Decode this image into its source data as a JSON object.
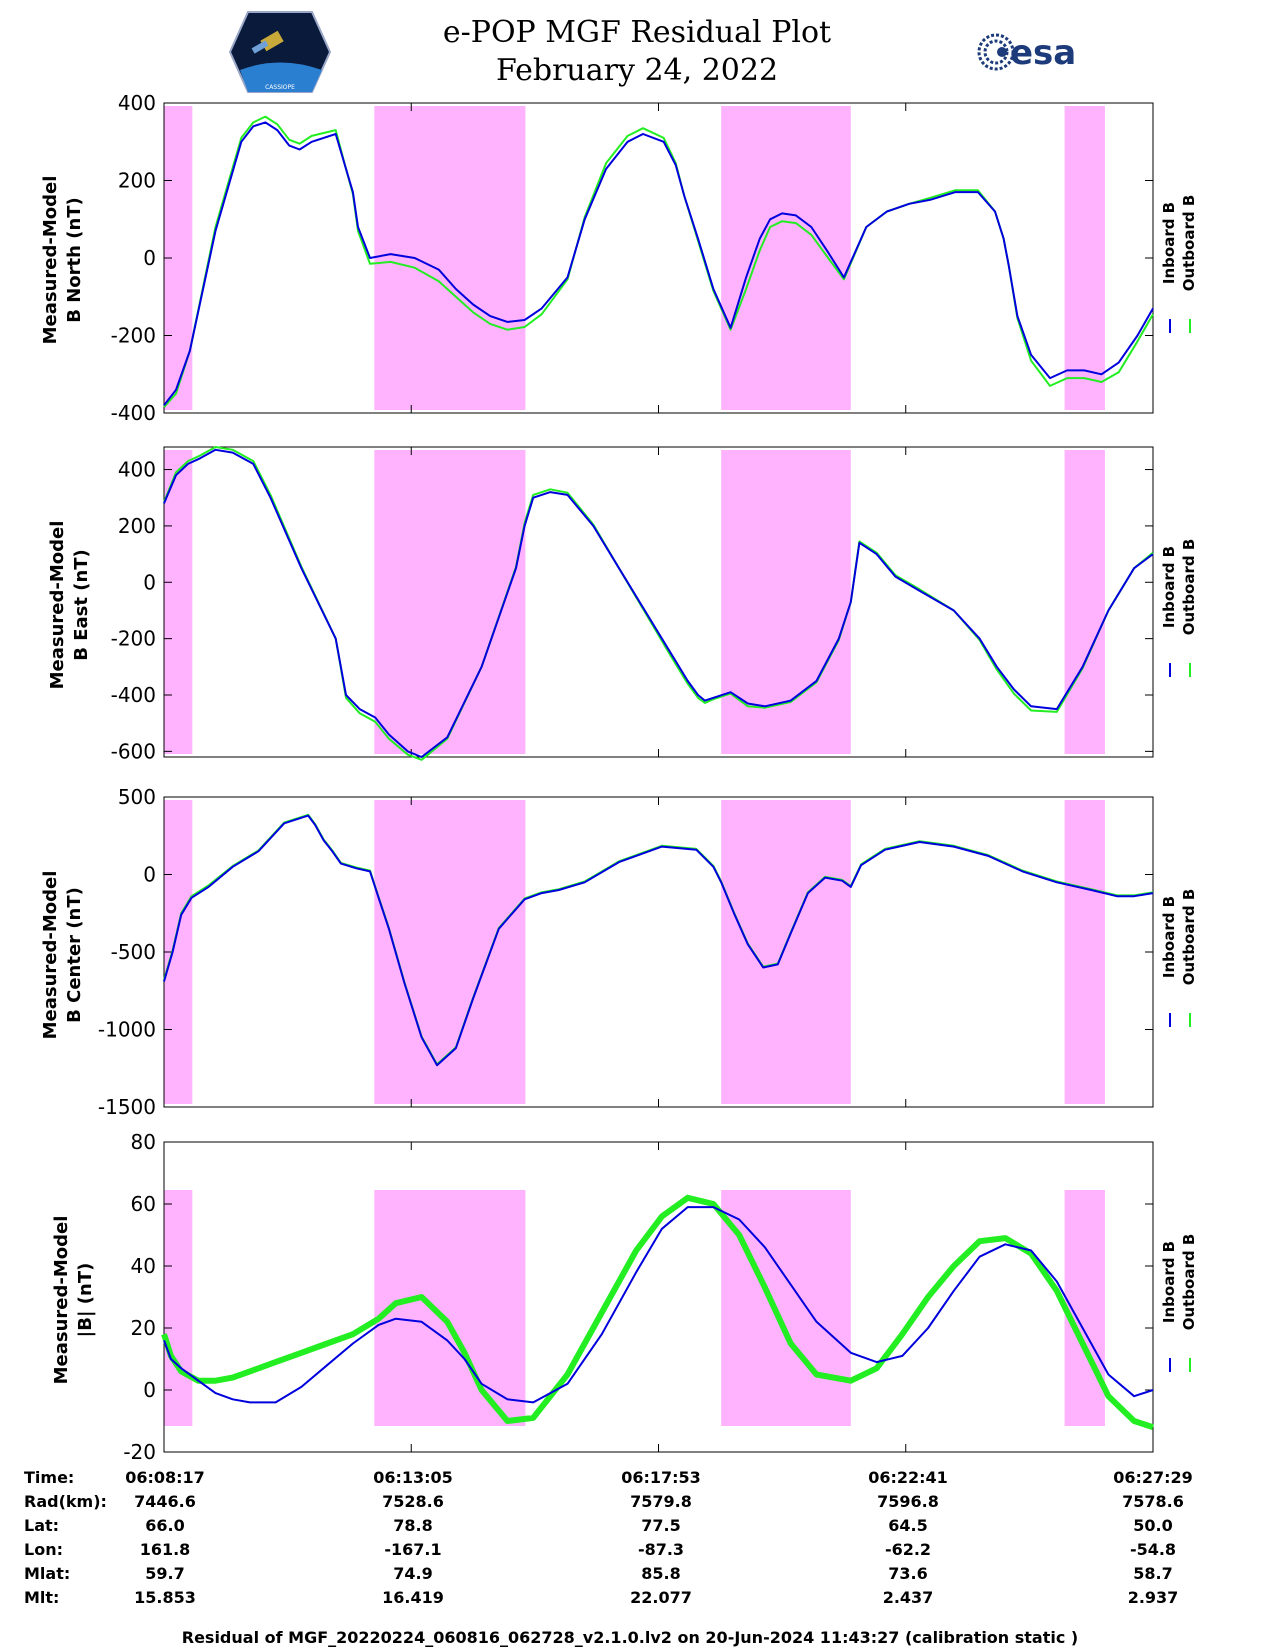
{
  "header": {
    "title_line1": "e-POP MGF Residual Plot",
    "title_line2": "February 24, 2022",
    "left_logo_text": "CASSIOPE",
    "right_logo_text": "esa"
  },
  "colors": {
    "inboard": "#0000dd",
    "outboard": "#22ee22",
    "eclipse": "#ffb3ff",
    "axis": "#000000"
  },
  "chart_data": [
    {
      "type": "line",
      "name": "b-north",
      "ylabel_lines": [
        "Measured-Model",
        "B North (nT)"
      ],
      "ylim": [
        -400,
        400
      ],
      "yticks": [
        -400,
        -200,
        0,
        200,
        400
      ],
      "xlim": [
        0,
        1152
      ],
      "legend": [
        "Inboard B",
        "Outboard B"
      ],
      "series": [
        {
          "name": "Inboard B",
          "x": [
            0,
            14,
            30,
            60,
            90,
            104,
            118,
            132,
            146,
            158,
            172,
            200,
            212,
            220,
            226,
            240,
            264,
            292,
            320,
            340,
            360,
            380,
            400,
            420,
            440,
            470,
            490,
            515,
            540,
            558,
            582,
            596,
            606,
            622,
            640,
            660,
            678,
            694,
            706,
            720,
            736,
            754,
            772,
            792,
            818,
            842,
            868,
            892,
            922,
            948,
            968,
            978,
            984,
            994,
            1010,
            1032,
            1052,
            1072,
            1092,
            1112,
            1134,
            1152
          ],
          "y": [
            -380,
            -340,
            -240,
            70,
            300,
            340,
            350,
            330,
            290,
            280,
            300,
            320,
            230,
            170,
            80,
            0,
            10,
            0,
            -30,
            -80,
            -120,
            -150,
            -165,
            -160,
            -130,
            -50,
            100,
            230,
            300,
            320,
            300,
            240,
            160,
            50,
            -80,
            -180,
            -50,
            50,
            100,
            115,
            110,
            80,
            20,
            -50,
            80,
            120,
            140,
            150,
            170,
            170,
            120,
            50,
            -20,
            -150,
            -250,
            -310,
            -290,
            -290,
            -300,
            -270,
            -200,
            -130
          ]
        },
        {
          "name": "Outboard B",
          "x": [
            0,
            14,
            30,
            60,
            90,
            104,
            118,
            132,
            146,
            158,
            172,
            200,
            212,
            220,
            226,
            240,
            264,
            292,
            320,
            340,
            360,
            380,
            400,
            420,
            440,
            470,
            490,
            515,
            540,
            558,
            582,
            596,
            606,
            622,
            640,
            660,
            678,
            694,
            706,
            720,
            736,
            754,
            772,
            792,
            818,
            842,
            868,
            892,
            922,
            948,
            968,
            978,
            984,
            994,
            1010,
            1032,
            1052,
            1072,
            1092,
            1112,
            1134,
            1152
          ],
          "y": [
            -385,
            -350,
            -240,
            80,
            310,
            350,
            365,
            345,
            305,
            295,
            315,
            330,
            230,
            165,
            70,
            -15,
            -10,
            -25,
            -60,
            -100,
            -140,
            -170,
            -185,
            -178,
            -145,
            -55,
            105,
            245,
            315,
            335,
            310,
            245,
            160,
            45,
            -85,
            -185,
            -80,
            20,
            80,
            95,
            90,
            60,
            5,
            -55,
            80,
            120,
            140,
            155,
            175,
            175,
            120,
            50,
            -20,
            -155,
            -265,
            -330,
            -310,
            -310,
            -320,
            -295,
            -215,
            -145
          ]
        }
      ],
      "eclipse_intervals": [
        [
          0,
          33
        ],
        [
          245,
          421
        ],
        [
          649,
          800
        ],
        [
          1049,
          1096
        ]
      ]
    },
    {
      "type": "line",
      "name": "b-east",
      "ylabel_lines": [
        "Measured-Model",
        "B East (nT)"
      ],
      "ylim": [
        -620,
        480
      ],
      "yticks": [
        -600,
        -400,
        -200,
        0,
        200,
        400
      ],
      "xlim": [
        0,
        1152
      ],
      "legend": [
        "Inboard B",
        "Outboard B"
      ],
      "series": [
        {
          "name": "Inboard B",
          "x": [
            0,
            14,
            28,
            42,
            60,
            80,
            104,
            124,
            160,
            200,
            212,
            228,
            246,
            262,
            284,
            300,
            330,
            370,
            410,
            420,
            430,
            450,
            470,
            500,
            530,
            560,
            590,
            610,
            622,
            630,
            640,
            660,
            680,
            700,
            730,
            760,
            786,
            800,
            810,
            830,
            852,
            880,
            920,
            950,
            970,
            990,
            1010,
            1040,
            1070,
            1100,
            1130,
            1152
          ],
          "y": [
            280,
            380,
            420,
            440,
            470,
            460,
            420,
            300,
            50,
            -200,
            -400,
            -450,
            -480,
            -540,
            -600,
            -620,
            -550,
            -300,
            50,
            200,
            300,
            320,
            310,
            200,
            50,
            -100,
            -250,
            -350,
            -400,
            -420,
            -410,
            -390,
            -430,
            -440,
            -420,
            -350,
            -200,
            -70,
            140,
            100,
            20,
            -30,
            -100,
            -200,
            -300,
            -380,
            -440,
            -450,
            -300,
            -100,
            50,
            100
          ]
        },
        {
          "name": "Outboard B",
          "x": [
            0,
            14,
            28,
            42,
            60,
            80,
            104,
            124,
            160,
            200,
            212,
            228,
            246,
            262,
            284,
            300,
            330,
            370,
            410,
            420,
            430,
            450,
            470,
            500,
            530,
            560,
            590,
            610,
            622,
            630,
            640,
            660,
            680,
            700,
            730,
            760,
            786,
            800,
            810,
            830,
            852,
            880,
            920,
            950,
            970,
            990,
            1010,
            1040,
            1070,
            1100,
            1130,
            1152
          ],
          "y": [
            285,
            390,
            430,
            450,
            480,
            470,
            430,
            310,
            55,
            -200,
            -410,
            -465,
            -495,
            -555,
            -612,
            -630,
            -555,
            -300,
            55,
            210,
            310,
            330,
            318,
            205,
            50,
            -105,
            -260,
            -360,
            -410,
            -428,
            -415,
            -395,
            -440,
            -445,
            -425,
            -355,
            -205,
            -70,
            145,
            105,
            25,
            -25,
            -100,
            -205,
            -310,
            -395,
            -455,
            -460,
            -305,
            -100,
            50,
            105
          ]
        }
      ],
      "eclipse_intervals": [
        [
          0,
          33
        ],
        [
          245,
          421
        ],
        [
          649,
          800
        ],
        [
          1049,
          1096
        ]
      ]
    },
    {
      "type": "line",
      "name": "b-center",
      "ylabel_lines": [
        "Measured-Model",
        "B Center (nT)"
      ],
      "ylim": [
        -1500,
        500
      ],
      "yticks": [
        -1500,
        -1000,
        -500,
        0,
        500
      ],
      "xlim": [
        0,
        1152
      ],
      "legend": [
        "Inboard B",
        "Outboard B"
      ],
      "series": [
        {
          "name": "Inboard B",
          "x": [
            0,
            10,
            20,
            32,
            52,
            80,
            110,
            140,
            168,
            176,
            186,
            196,
            206,
            224,
            240,
            250,
            262,
            280,
            300,
            318,
            340,
            360,
            390,
            420,
            440,
            460,
            490,
            530,
            580,
            620,
            640,
            649,
            664,
            680,
            698,
            715,
            730,
            750,
            770,
            790,
            800,
            812,
            840,
            880,
            920,
            960,
            1000,
            1040,
            1080,
            1110,
            1130,
            1152
          ],
          "y": [
            -690,
            -500,
            -260,
            -150,
            -80,
            50,
            150,
            330,
            380,
            320,
            220,
            150,
            70,
            40,
            20,
            -150,
            -350,
            -700,
            -1050,
            -1230,
            -1120,
            -800,
            -350,
            -160,
            -120,
            -100,
            -50,
            80,
            180,
            160,
            50,
            -50,
            -250,
            -450,
            -600,
            -580,
            -380,
            -120,
            -20,
            -40,
            -80,
            60,
            160,
            210,
            180,
            120,
            20,
            -50,
            -100,
            -140,
            -140,
            -120
          ]
        },
        {
          "name": "Outboard B",
          "x": [
            0,
            10,
            20,
            32,
            52,
            80,
            110,
            140,
            168,
            176,
            186,
            196,
            206,
            224,
            240,
            250,
            262,
            280,
            300,
            318,
            340,
            360,
            390,
            420,
            440,
            460,
            490,
            530,
            580,
            620,
            640,
            649,
            664,
            680,
            698,
            715,
            730,
            750,
            770,
            790,
            800,
            812,
            840,
            880,
            920,
            960,
            1000,
            1040,
            1080,
            1110,
            1130,
            1152
          ],
          "y": [
            -680,
            -490,
            -250,
            -140,
            -70,
            55,
            155,
            335,
            385,
            325,
            225,
            155,
            75,
            45,
            25,
            -145,
            -345,
            -695,
            -1045,
            -1225,
            -1115,
            -795,
            -345,
            -155,
            -115,
            -95,
            -45,
            85,
            185,
            165,
            55,
            -45,
            -245,
            -445,
            -595,
            -575,
            -375,
            -115,
            -15,
            -35,
            -75,
            65,
            165,
            215,
            185,
            125,
            25,
            -45,
            -95,
            -135,
            -135,
            -115
          ]
        }
      ],
      "eclipse_intervals": [
        [
          0,
          33
        ],
        [
          245,
          421
        ],
        [
          649,
          800
        ],
        [
          1049,
          1096
        ]
      ]
    },
    {
      "type": "line",
      "name": "b-total",
      "ylabel_lines": [
        "Measured-Model",
        "|B| (nT)"
      ],
      "ylim": [
        -20,
        80
      ],
      "yticks": [
        -20,
        0,
        20,
        40,
        60,
        80
      ],
      "xlim": [
        0,
        1152
      ],
      "legend": [
        "Inboard B",
        "Outboard B"
      ],
      "series": [
        {
          "name": "Inboard B",
          "x": [
            0,
            8,
            20,
            40,
            60,
            80,
            100,
            130,
            160,
            190,
            220,
            250,
            270,
            300,
            330,
            350,
            370,
            400,
            430,
            470,
            510,
            550,
            580,
            610,
            640,
            670,
            700,
            730,
            760,
            800,
            830,
            860,
            890,
            920,
            950,
            980,
            1010,
            1040,
            1070,
            1100,
            1130,
            1152
          ],
          "y": [
            16,
            10,
            7,
            3,
            -1,
            -3,
            -4,
            -4,
            1,
            8,
            15,
            21,
            23,
            22,
            16,
            10,
            2,
            -3,
            -4,
            2,
            18,
            38,
            52,
            59,
            59,
            55,
            46,
            34,
            22,
            12,
            9,
            11,
            20,
            32,
            43,
            47,
            45,
            35,
            20,
            5,
            -2,
            0
          ]
        },
        {
          "name": "Outboard B",
          "x": [
            0,
            8,
            20,
            40,
            60,
            80,
            100,
            130,
            160,
            190,
            220,
            250,
            270,
            300,
            330,
            350,
            370,
            400,
            430,
            470,
            510,
            550,
            580,
            610,
            640,
            670,
            700,
            730,
            760,
            800,
            830,
            860,
            890,
            920,
            950,
            980,
            1010,
            1040,
            1070,
            1100,
            1130,
            1152
          ],
          "y": [
            18,
            11,
            6,
            3,
            3,
            4,
            6,
            9,
            12,
            15,
            18,
            23,
            28,
            30,
            22,
            12,
            0,
            -10,
            -9,
            5,
            25,
            45,
            56,
            62,
            60,
            50,
            33,
            15,
            5,
            3,
            7,
            18,
            30,
            40,
            48,
            49,
            44,
            32,
            15,
            -2,
            -10,
            -12
          ]
        }
      ],
      "eclipse_intervals": [
        [
          0,
          33
        ],
        [
          245,
          421
        ],
        [
          649,
          800
        ],
        [
          1049,
          1096
        ]
      ]
    }
  ],
  "info_table": {
    "row_labels": [
      "Time:",
      "Rad(km):",
      "Lat:",
      "Lon:",
      "Mlat:",
      "Mlt:"
    ],
    "columns": [
      [
        "06:08:17",
        "7446.6",
        "66.0",
        "161.8",
        "59.7",
        "15.853"
      ],
      [
        "06:13:05",
        "7528.6",
        "78.8",
        "-167.1",
        "74.9",
        "16.419"
      ],
      [
        "06:17:53",
        "7579.8",
        "77.5",
        "-87.3",
        "85.8",
        "22.077"
      ],
      [
        "06:22:41",
        "7596.8",
        "64.5",
        "-62.2",
        "73.6",
        "2.437"
      ],
      [
        "06:27:29",
        "7578.6",
        "50.0",
        "-54.8",
        "58.7",
        "2.937"
      ]
    ]
  },
  "footer": "Residual of MGF_20220224_060816_062728_v2.1.0.lv2 on 20-Jun-2024 11:43:27 (calibration static )"
}
